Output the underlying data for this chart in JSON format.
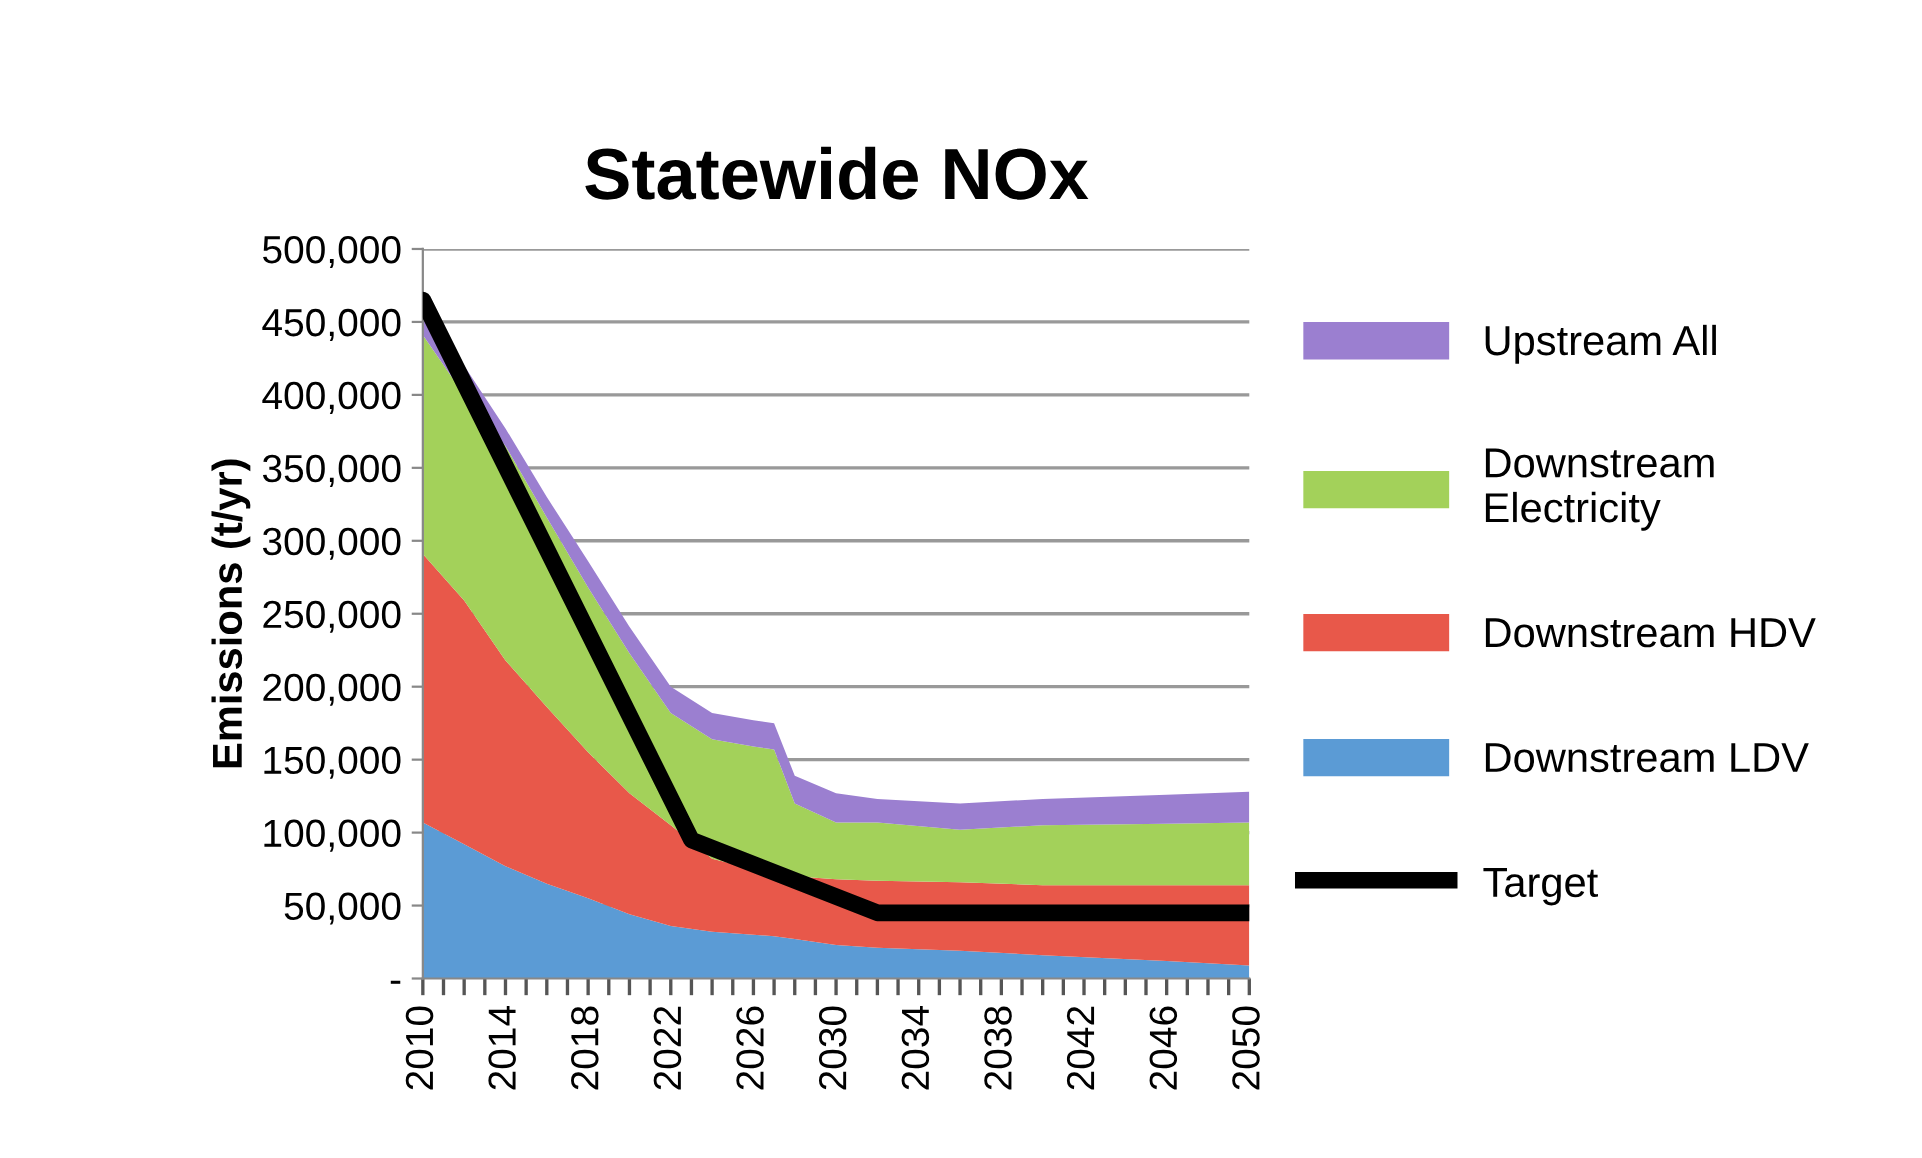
{
  "chart_data": {
    "type": "area",
    "stacked": true,
    "title": "Statewide NOx",
    "ylabel": "Emissions (t/yr)",
    "x": [
      2010,
      2012,
      2014,
      2016,
      2018,
      2020,
      2022,
      2024,
      2026,
      2027,
      2028,
      2030,
      2032,
      2036,
      2040,
      2046,
      2050
    ],
    "series": [
      {
        "name": "Downstream LDV",
        "color": "#5b9bd5",
        "values": [
          107000,
          92000,
          77000,
          65000,
          55000,
          44000,
          36000,
          32000,
          30000,
          29000,
          27000,
          23000,
          21000,
          19000,
          16000,
          12000,
          9000
        ]
      },
      {
        "name": "Downstream HDV",
        "color": "#e8584a",
        "values": [
          184000,
          167000,
          141000,
          121000,
          100000,
          83000,
          69000,
          50000,
          45000,
          43000,
          43000,
          45000,
          46000,
          47000,
          48000,
          52000,
          55000
        ]
      },
      {
        "name": "Downstream\nElectricity",
        "color": "#a3d15a",
        "values": [
          150000,
          141000,
          147000,
          130000,
          113000,
          96000,
          77000,
          82000,
          84000,
          85000,
          50000,
          39000,
          40000,
          36000,
          41000,
          42000,
          43000
        ]
      },
      {
        "name": "Upstream All",
        "color": "#9b7fd0",
        "values": [
          21000,
          20000,
          12000,
          14000,
          18000,
          18000,
          18000,
          18000,
          18000,
          18000,
          19000,
          20000,
          16000,
          18000,
          18000,
          20000,
          21000
        ]
      },
      {
        "name": "Target",
        "type": "line",
        "color": "#000000",
        "x": [
          2010,
          2023,
          2032,
          2050
        ],
        "values": [
          465000,
          95000,
          45000,
          45000
        ]
      }
    ],
    "xlim": [
      2010,
      2050
    ],
    "xticks": [
      2010,
      {
        "value": 2011,
        "label": null
      },
      {
        "value": 2012,
        "label": null
      },
      {
        "value": 2013,
        "label": null
      },
      2014,
      {
        "value": 2015,
        "label": null
      },
      {
        "value": 2016,
        "label": null
      },
      {
        "value": 2017,
        "label": null
      },
      2018,
      {
        "value": 2019,
        "label": null
      },
      {
        "value": 2020,
        "label": null
      },
      {
        "value": 2021,
        "label": null
      },
      2022,
      {
        "value": 2023,
        "label": null
      },
      {
        "value": 2024,
        "label": null
      },
      {
        "value": 2025,
        "label": null
      },
      2026,
      {
        "value": 2027,
        "label": null
      },
      {
        "value": 2028,
        "label": null
      },
      {
        "value": 2029,
        "label": null
      },
      2030,
      {
        "value": 2031,
        "label": null
      },
      {
        "value": 2032,
        "label": null
      },
      {
        "value": 2033,
        "label": null
      },
      2034,
      {
        "value": 2035,
        "label": null
      },
      {
        "value": 2036,
        "label": null
      },
      {
        "value": 2037,
        "label": null
      },
      2038,
      {
        "value": 2039,
        "label": null
      },
      {
        "value": 2040,
        "label": null
      },
      {
        "value": 2041,
        "label": null
      },
      2042,
      {
        "value": 2043,
        "label": null
      },
      {
        "value": 2044,
        "label": null
      },
      {
        "value": 2045,
        "label": null
      },
      2046,
      {
        "value": 2047,
        "label": null
      },
      {
        "value": 2048,
        "label": null
      },
      {
        "value": 2049,
        "label": null
      },
      2050
    ],
    "ylim": [
      0,
      500000
    ],
    "yticks": [
      {
        "value": 0,
        "label": "-"
      },
      {
        "value": 50000,
        "label": "50,000"
      },
      {
        "value": 100000,
        "label": "100,000"
      },
      {
        "value": 150000,
        "label": "150,000"
      },
      {
        "value": 200000,
        "label": "200,000"
      },
      {
        "value": 250000,
        "label": "250,000"
      },
      {
        "value": 300000,
        "label": "300,000"
      },
      {
        "value": 350000,
        "label": "350,000"
      },
      {
        "value": 400000,
        "label": "400,000"
      },
      {
        "value": 450000,
        "label": "450,000"
      },
      {
        "value": 500000,
        "label": "500,000"
      }
    ],
    "grid": "y",
    "legend": "right"
  }
}
